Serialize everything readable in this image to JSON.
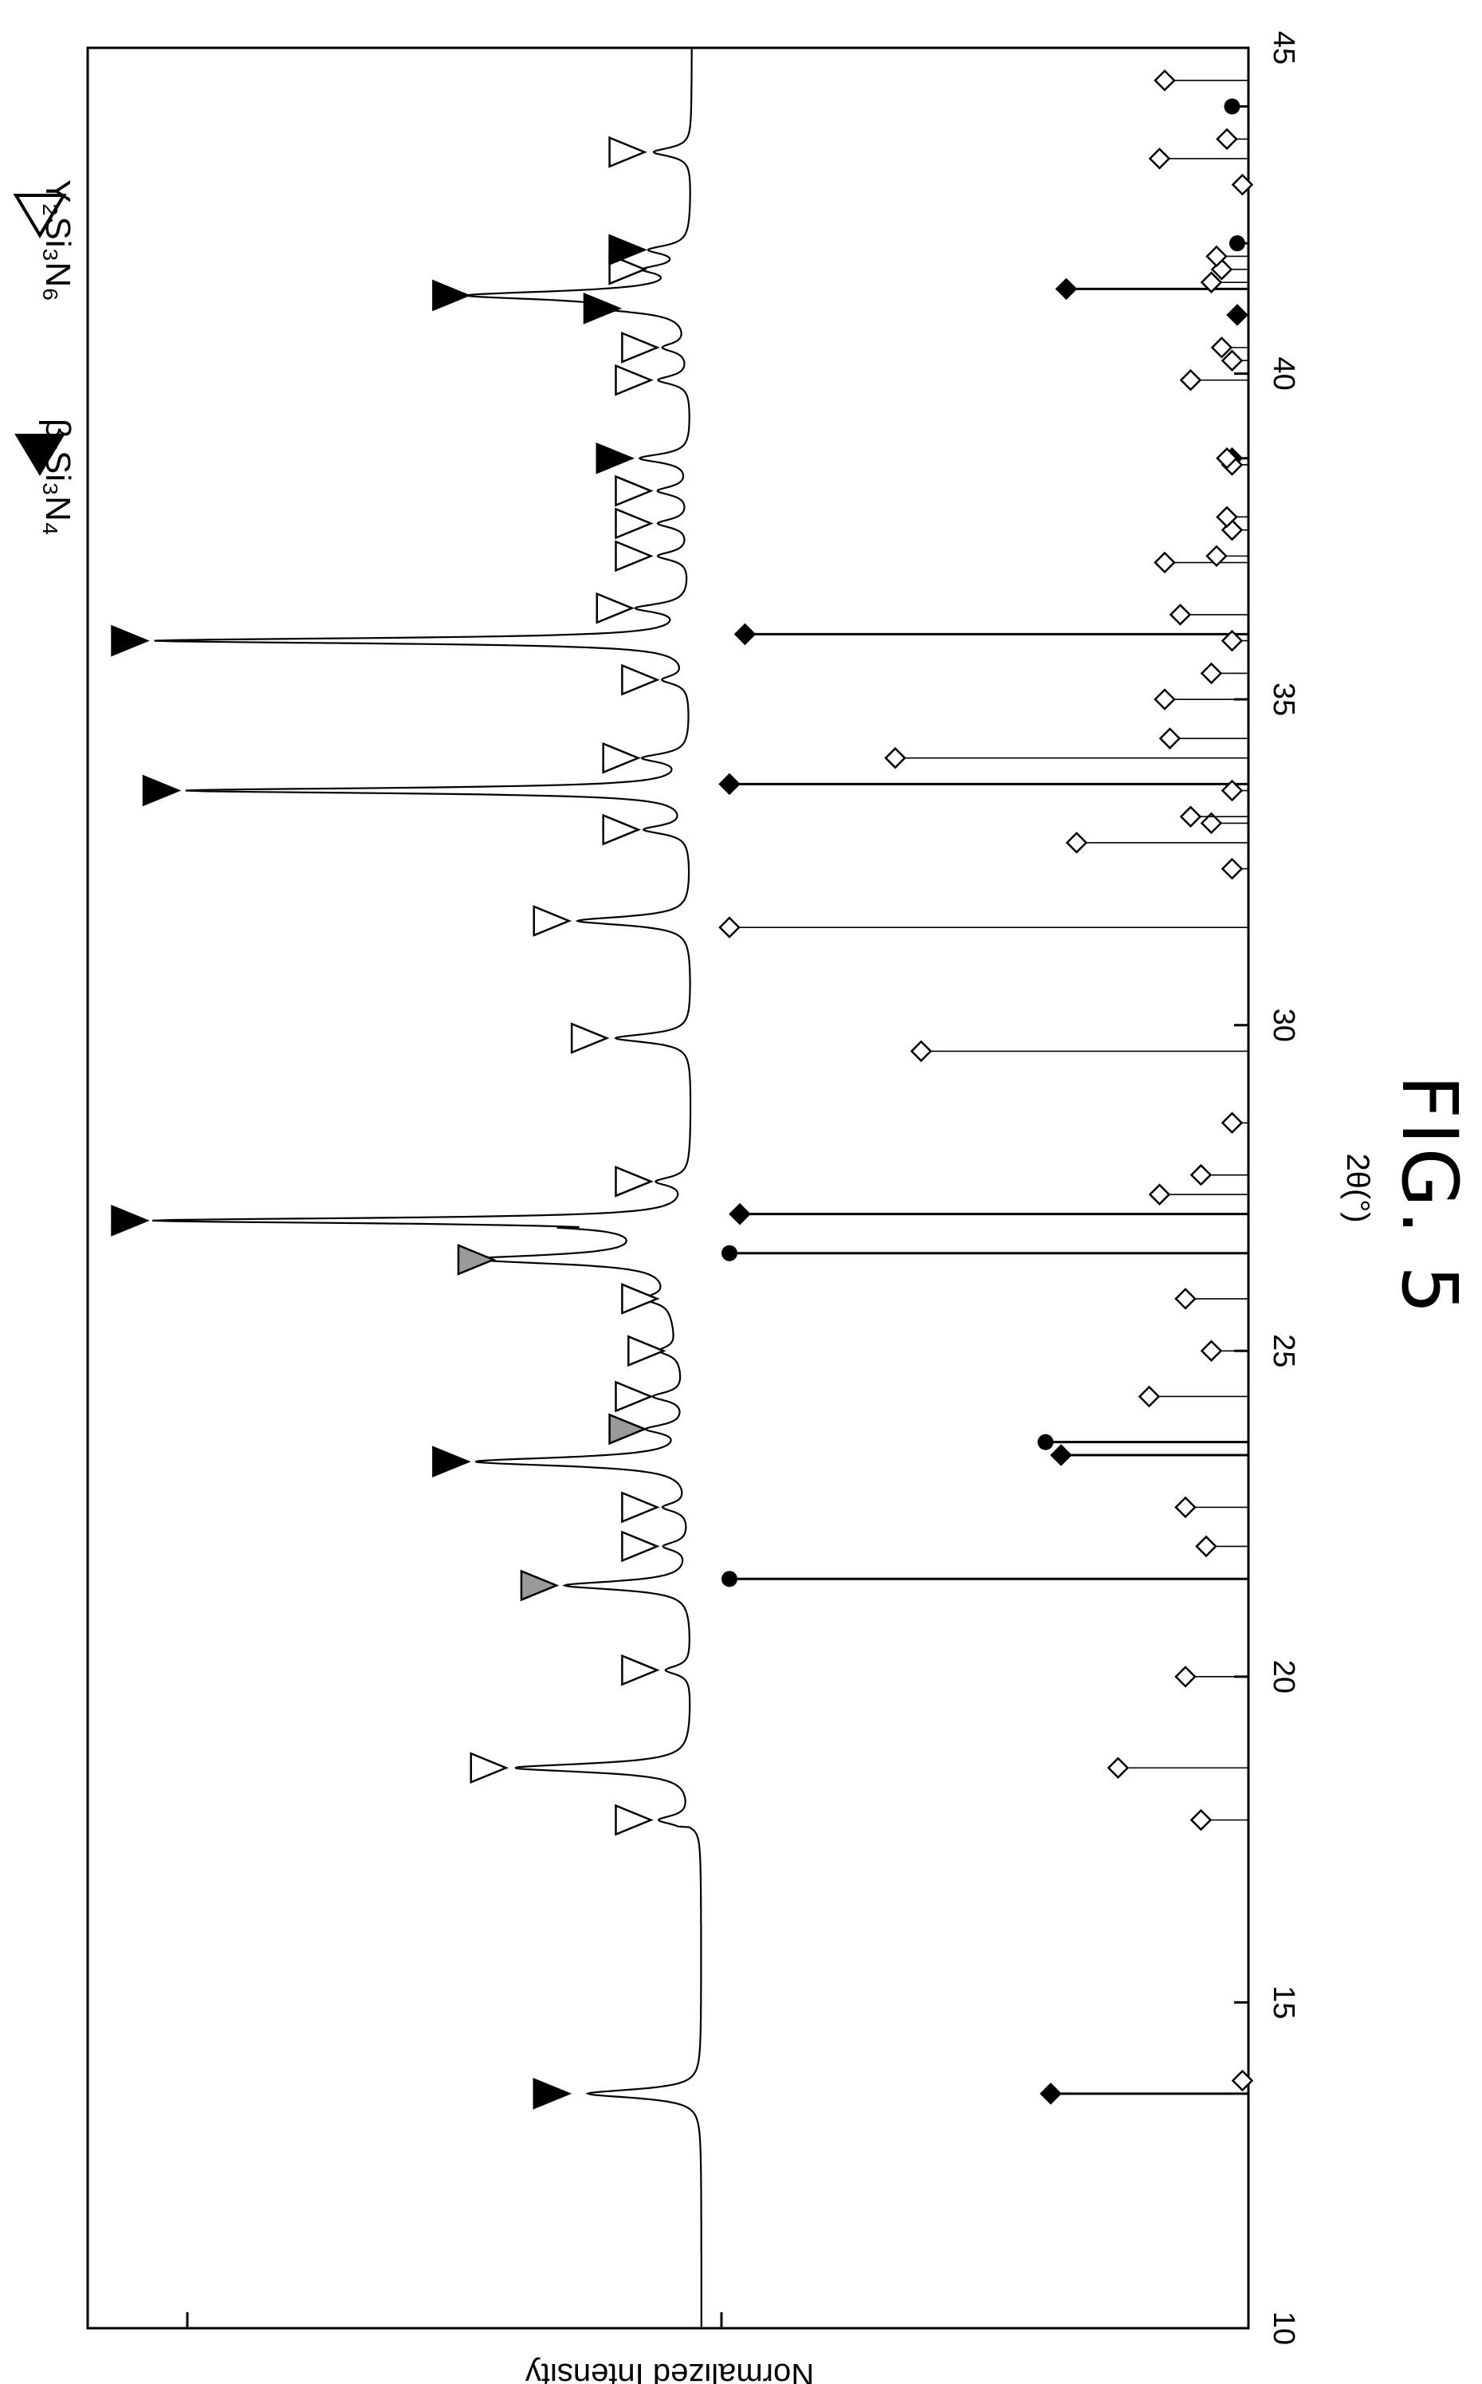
{
  "figure": {
    "label": "FIG. 5"
  },
  "legend": [
    {
      "marker": "filled-triangle",
      "text": "β-Si₃N₄"
    },
    {
      "marker": "open-triangle",
      "text": "Y₂Si₃N₆"
    }
  ],
  "chart_data": {
    "type": "line",
    "xlabel": "2θ(°)",
    "ylabel": "Normalized Intensity",
    "xlim": [
      10,
      45
    ],
    "xticks": [
      "10",
      "15",
      "20",
      "25",
      "30",
      "35",
      "40",
      "45"
    ],
    "rotation": "rotated 90 degrees clockwise",
    "series": [
      {
        "role": "measured-pattern",
        "peaks": [
          {
            "x": 13.6,
            "h": 0.18
          },
          {
            "x": 17.8,
            "h": 0.05
          },
          {
            "x": 18.6,
            "h": 0.28
          },
          {
            "x": 20.1,
            "h": 0.04
          },
          {
            "x": 21.4,
            "h": 0.2
          },
          {
            "x": 22.0,
            "h": 0.04
          },
          {
            "x": 22.6,
            "h": 0.04
          },
          {
            "x": 23.3,
            "h": 0.34
          },
          {
            "x": 23.8,
            "h": 0.06
          },
          {
            "x": 24.3,
            "h": 0.05
          },
          {
            "x": 25.0,
            "h": 0.03
          },
          {
            "x": 25.8,
            "h": 0.04
          },
          {
            "x": 26.4,
            "h": 0.3
          },
          {
            "x": 27.0,
            "h": 0.85
          },
          {
            "x": 27.6,
            "h": 0.05
          },
          {
            "x": 29.8,
            "h": 0.12
          },
          {
            "x": 31.6,
            "h": 0.18
          },
          {
            "x": 33.0,
            "h": 0.07
          },
          {
            "x": 33.6,
            "h": 0.8
          },
          {
            "x": 34.1,
            "h": 0.07
          },
          {
            "x": 35.3,
            "h": 0.04
          },
          {
            "x": 35.9,
            "h": 0.85
          },
          {
            "x": 36.4,
            "h": 0.08
          },
          {
            "x": 37.2,
            "h": 0.05
          },
          {
            "x": 37.7,
            "h": 0.05
          },
          {
            "x": 38.2,
            "h": 0.05
          },
          {
            "x": 38.7,
            "h": 0.08
          },
          {
            "x": 39.9,
            "h": 0.05
          },
          {
            "x": 40.4,
            "h": 0.04
          },
          {
            "x": 41.0,
            "h": 0.1
          },
          {
            "x": 41.2,
            "h": 0.34
          },
          {
            "x": 41.6,
            "h": 0.06
          },
          {
            "x": 41.9,
            "h": 0.06
          },
          {
            "x": 43.4,
            "h": 0.06
          }
        ]
      },
      {
        "role": "reference-filled-diamond",
        "points": [
          [
            13.6,
            0.38
          ],
          [
            23.4,
            0.36
          ],
          [
            27.1,
            0.98
          ],
          [
            33.7,
            1.0
          ],
          [
            36.0,
            0.97
          ],
          [
            38.7,
            0.03
          ],
          [
            40.9,
            0.02
          ],
          [
            41.3,
            0.35
          ]
        ]
      },
      {
        "role": "reference-filled-circle",
        "points": [
          [
            21.5,
            1.0
          ],
          [
            23.6,
            0.39
          ],
          [
            26.5,
            1.0
          ],
          [
            42.0,
            0.02
          ],
          [
            44.1,
            0.03
          ]
        ]
      },
      {
        "role": "reference-open-diamond",
        "points": [
          [
            13.8,
            0.01
          ],
          [
            17.8,
            0.09
          ],
          [
            18.6,
            0.25
          ],
          [
            20.0,
            0.12
          ],
          [
            22.0,
            0.08
          ],
          [
            22.6,
            0.12
          ],
          [
            24.3,
            0.19
          ],
          [
            25.0,
            0.07
          ],
          [
            25.8,
            0.12
          ],
          [
            27.4,
            0.17
          ],
          [
            27.7,
            0.09
          ],
          [
            28.5,
            0.03
          ],
          [
            29.6,
            0.63
          ],
          [
            31.5,
            1.0
          ],
          [
            32.4,
            0.03
          ],
          [
            32.8,
            0.33
          ],
          [
            33.1,
            0.07
          ],
          [
            33.2,
            0.11
          ],
          [
            33.6,
            0.03
          ],
          [
            34.1,
            0.68
          ],
          [
            34.4,
            0.15
          ],
          [
            35.0,
            0.16
          ],
          [
            35.4,
            0.07
          ],
          [
            35.9,
            0.03
          ],
          [
            36.3,
            0.13
          ],
          [
            37.1,
            0.16
          ],
          [
            37.2,
            0.06
          ],
          [
            37.6,
            0.03
          ],
          [
            37.8,
            0.04
          ],
          [
            38.6,
            0.03
          ],
          [
            38.7,
            0.04
          ],
          [
            39.9,
            0.11
          ],
          [
            40.2,
            0.03
          ],
          [
            40.4,
            0.05
          ],
          [
            41.4,
            0.07
          ],
          [
            41.6,
            0.05
          ],
          [
            41.8,
            0.06
          ],
          [
            42.9,
            0.01
          ],
          [
            43.3,
            0.17
          ],
          [
            43.6,
            0.04
          ],
          [
            44.5,
            0.16
          ]
        ]
      }
    ],
    "peak_marks": [
      {
        "x": 13.6,
        "type": "filled"
      },
      {
        "x": 17.8,
        "type": "open"
      },
      {
        "x": 18.6,
        "type": "open"
      },
      {
        "x": 20.1,
        "type": "open"
      },
      {
        "x": 21.4,
        "type": "gray"
      },
      {
        "x": 22.0,
        "type": "open"
      },
      {
        "x": 22.6,
        "type": "open"
      },
      {
        "x": 23.3,
        "type": "filled"
      },
      {
        "x": 23.8,
        "type": "gray"
      },
      {
        "x": 24.3,
        "type": "open"
      },
      {
        "x": 25.0,
        "type": "open"
      },
      {
        "x": 25.8,
        "type": "open"
      },
      {
        "x": 26.4,
        "type": "gray"
      },
      {
        "x": 27.0,
        "type": "filled"
      },
      {
        "x": 27.6,
        "type": "open"
      },
      {
        "x": 29.8,
        "type": "open"
      },
      {
        "x": 31.6,
        "type": "open"
      },
      {
        "x": 33.0,
        "type": "open"
      },
      {
        "x": 33.6,
        "type": "filled"
      },
      {
        "x": 34.1,
        "type": "open"
      },
      {
        "x": 35.3,
        "type": "open"
      },
      {
        "x": 35.9,
        "type": "filled"
      },
      {
        "x": 36.4,
        "type": "open"
      },
      {
        "x": 37.2,
        "type": "open"
      },
      {
        "x": 37.7,
        "type": "open"
      },
      {
        "x": 38.2,
        "type": "open"
      },
      {
        "x": 38.7,
        "type": "filled"
      },
      {
        "x": 39.9,
        "type": "open"
      },
      {
        "x": 40.4,
        "type": "open"
      },
      {
        "x": 41.0,
        "type": "filled"
      },
      {
        "x": 41.2,
        "type": "filled"
      },
      {
        "x": 41.6,
        "type": "open"
      },
      {
        "x": 41.9,
        "type": "filled"
      },
      {
        "x": 43.4,
        "type": "open"
      }
    ],
    "colors": {
      "stroke": "#000000",
      "gray_marker": "#9a9a9a",
      "background": "#ffffff"
    }
  }
}
